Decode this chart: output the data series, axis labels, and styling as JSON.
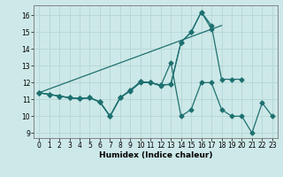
{
  "xlabel": "Humidex (Indice chaleur)",
  "background_color": "#cde8e8",
  "grid_color": "#b8d8d8",
  "line_color": "#1e7070",
  "xlim": [
    -0.5,
    23.5
  ],
  "ylim": [
    8.7,
    16.6
  ],
  "yticks": [
    9,
    10,
    11,
    12,
    13,
    14,
    15,
    16
  ],
  "xticks": [
    0,
    1,
    2,
    3,
    4,
    5,
    6,
    7,
    8,
    9,
    10,
    11,
    12,
    13,
    14,
    15,
    16,
    17,
    18,
    19,
    20,
    21,
    22,
    23
  ],
  "line_diagonal": {
    "x": [
      0,
      18
    ],
    "y": [
      11.4,
      15.4
    ]
  },
  "line_top": {
    "x": [
      0,
      1,
      2,
      3,
      4,
      5,
      6,
      7,
      8,
      9,
      10,
      11,
      12,
      13,
      14,
      15,
      16,
      17
    ],
    "y": [
      11.4,
      11.3,
      11.2,
      11.1,
      11.05,
      11.1,
      10.85,
      10.0,
      11.1,
      11.55,
      12.05,
      12.0,
      11.85,
      11.9,
      14.4,
      15.0,
      16.2,
      15.2
    ]
  },
  "line_mid": {
    "x": [
      0,
      1,
      2,
      3,
      4,
      5,
      6,
      7,
      8,
      9,
      10,
      11,
      12,
      13,
      14,
      15,
      16,
      17,
      18,
      19,
      20
    ],
    "y": [
      11.4,
      11.3,
      11.2,
      11.1,
      11.05,
      11.1,
      10.85,
      10.0,
      11.1,
      11.55,
      12.05,
      12.0,
      11.85,
      11.9,
      14.4,
      15.0,
      16.2,
      15.4,
      12.2,
      12.2,
      12.2
    ]
  },
  "line_bot": {
    "x": [
      0,
      1,
      2,
      3,
      4,
      5,
      6,
      7,
      8,
      9,
      10,
      11,
      12,
      13,
      14,
      15,
      16,
      17,
      18,
      19,
      20,
      21,
      22,
      23
    ],
    "y": [
      11.4,
      11.3,
      11.2,
      11.1,
      11.05,
      11.1,
      10.85,
      10.0,
      11.1,
      11.5,
      12.0,
      12.0,
      11.8,
      13.2,
      10.0,
      10.4,
      12.0,
      12.0,
      10.4,
      10.0,
      10.0,
      9.0,
      10.8,
      10.0
    ]
  }
}
